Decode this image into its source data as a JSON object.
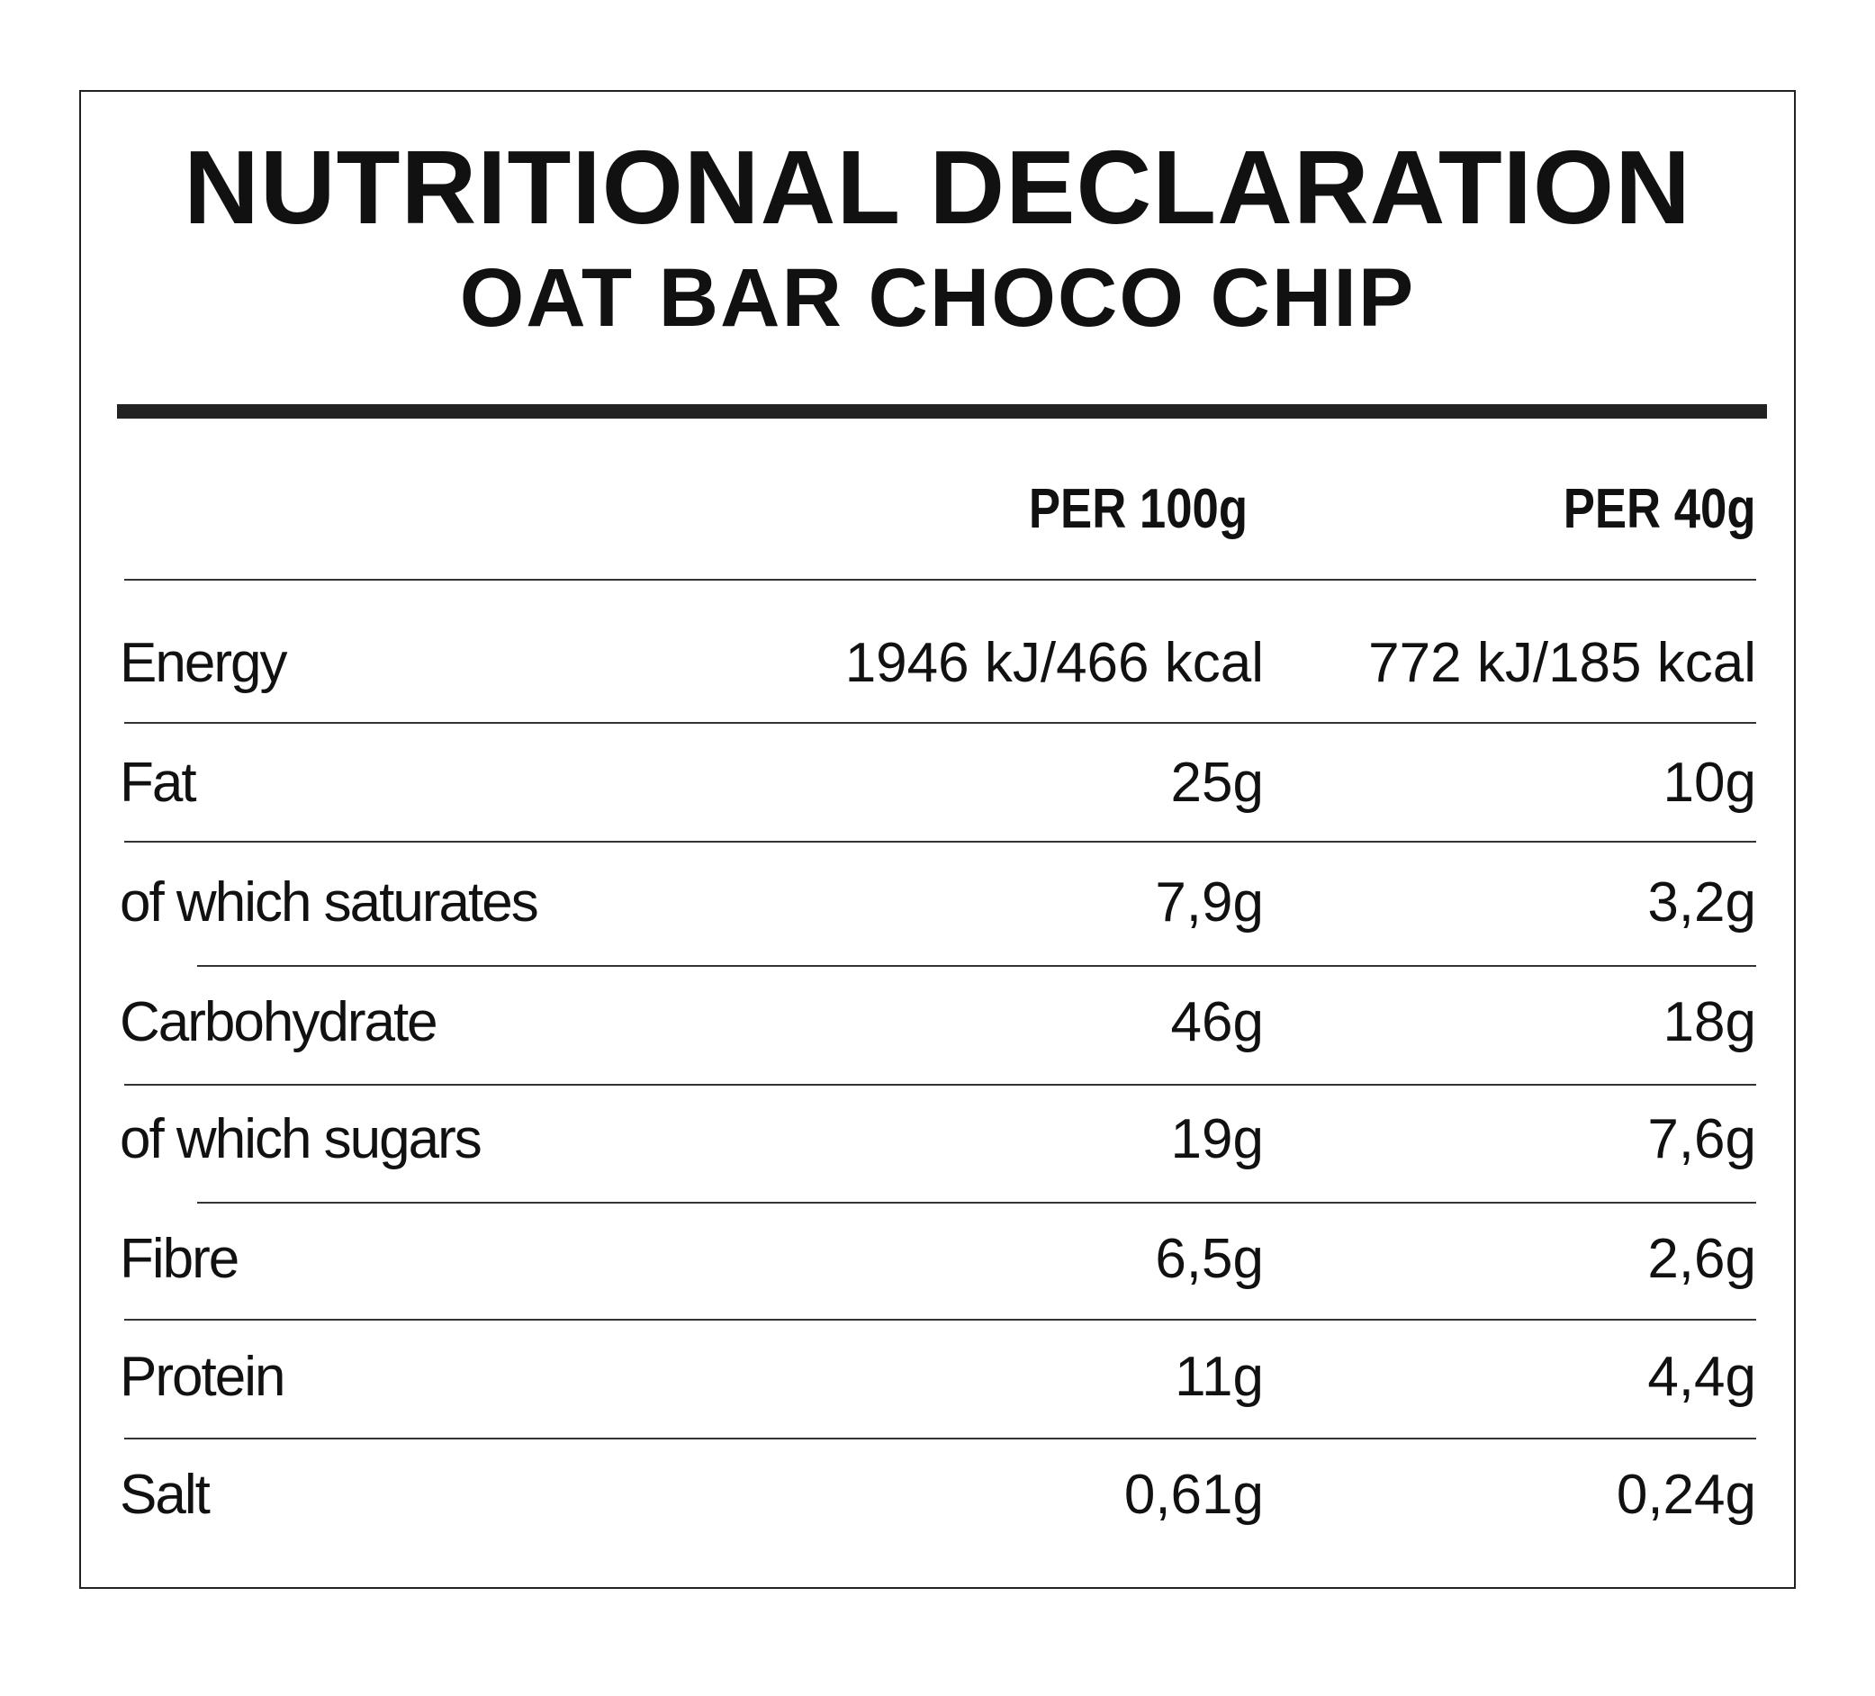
{
  "header": {
    "title": "NUTRITIONAL DECLARATION",
    "subtitle": "OAT BAR CHOCO CHIP"
  },
  "columns": [
    "PER 100g",
    "PER 40g"
  ],
  "rows": [
    {
      "label": "Energy",
      "per100": "1946 kJ/466 kcal",
      "per40": "772 kJ/185 kcal"
    },
    {
      "label": "Fat",
      "per100": "25g",
      "per40": "10g"
    },
    {
      "label": "of which saturates",
      "per100": "7,9g",
      "per40": "3,2g"
    },
    {
      "label": "Carbohydrate",
      "per100": "46g",
      "per40": "18g"
    },
    {
      "label": "of which sugars",
      "per100": "19g",
      "per40": "7,6g"
    },
    {
      "label": "Fibre",
      "per100": "6,5g",
      "per40": "2,6g"
    },
    {
      "label": "Protein",
      "per100": "11g",
      "per40": "4,4g"
    },
    {
      "label": "Salt",
      "per100": "0,61g",
      "per40": "0,24g"
    }
  ]
}
